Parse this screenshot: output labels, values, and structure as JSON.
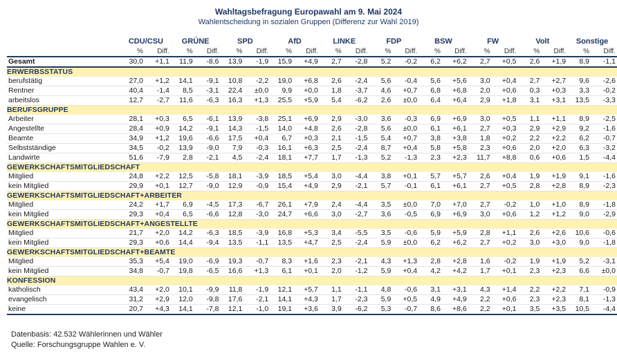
{
  "title": "Wahltagsbefragung Europawahl am 9. Mai 2024",
  "subtitle": "Wahlentscheidung in sozialen Gruppen (Differenz zur Wahl 2019)",
  "parties": [
    "CDU/CSU",
    "GRÜNE",
    "SPD",
    "AfD",
    "LINKE",
    "FDP",
    "BSW",
    "FW",
    "Volt",
    "Sonstige"
  ],
  "subheader": {
    "pct": "%",
    "diff": "Diff."
  },
  "gesamt": {
    "label": "Gesamt",
    "values": [
      "30,0",
      "+1,1",
      "11,9",
      "-8,6",
      "13,9",
      "-1,9",
      "15,9",
      "+4,9",
      "2,7",
      "-2,8",
      "5,2",
      "-0,2",
      "6,2",
      "+6,2",
      "2,7",
      "+0,5",
      "2,6",
      "+1,9",
      "8,9",
      "-1,1"
    ]
  },
  "sections": [
    {
      "title": "ERWERBSSTATUS",
      "rows": [
        {
          "label": "berufstätig",
          "values": [
            "27,0",
            "+1,2",
            "14,1",
            "-9,1",
            "10,8",
            "-2,2",
            "19,0",
            "+6,8",
            "2,6",
            "-2,4",
            "5,6",
            "-0,4",
            "5,6",
            "+5,6",
            "3,0",
            "+0,4",
            "2,7",
            "+2,7",
            "9,6",
            "-2,6"
          ]
        },
        {
          "label": "Rentner",
          "values": [
            "40,4",
            "-1,4",
            "8,5",
            "-3,1",
            "22,4",
            "±0,0",
            "9,9",
            "+0,0",
            "1,8",
            "-3,7",
            "4,6",
            "+0,7",
            "6,8",
            "+6,8",
            "2,0",
            "+0,6",
            "0,3",
            "+0,3",
            "3,3",
            "-0,2"
          ]
        },
        {
          "label": "arbeitslos",
          "values": [
            "12,7",
            "-2,7",
            "11,6",
            "-6,3",
            "16,3",
            "+1,3",
            "25,5",
            "+5,9",
            "5,4",
            "-6,2",
            "2,6",
            "±0,0",
            "6,4",
            "+6,4",
            "2,9",
            "+1,8",
            "3,1",
            "+3,1",
            "13,5",
            "-3,3"
          ]
        }
      ]
    },
    {
      "title": "BERUFSGRUPPE",
      "rows": [
        {
          "label": "Arbeiter",
          "values": [
            "28,1",
            "+0,3",
            "6,5",
            "-6,1",
            "13,9",
            "-3,8",
            "25,1",
            "+6,9",
            "2,9",
            "-3,0",
            "3,6",
            "-0,3",
            "6,9",
            "+6,9",
            "3,0",
            "+0,5",
            "1,1",
            "+1,1",
            "8,9",
            "-2,5"
          ]
        },
        {
          "label": "Angestellte",
          "values": [
            "28,4",
            "+0,9",
            "14,2",
            "-9,1",
            "14,3",
            "-1,5",
            "14,0",
            "+4,8",
            "2,6",
            "-2,8",
            "5,6",
            "±0,0",
            "6,1",
            "+6,1",
            "2,7",
            "+0,3",
            "2,9",
            "+2,9",
            "9,2",
            "-1,6"
          ]
        },
        {
          "label": "Beamte",
          "values": [
            "34,9",
            "+1,2",
            "19,6",
            "-6,6",
            "17,5",
            "+0,4",
            "6,7",
            "+0,3",
            "2,1",
            "-1,5",
            "5,4",
            "+0,7",
            "3,8",
            "+3,8",
            "1,8",
            "+0,2",
            "2,2",
            "+2,2",
            "6,2",
            "-0,7"
          ]
        },
        {
          "label": "Selbstständige",
          "values": [
            "34,5",
            "-0,2",
            "13,9",
            "-9,0",
            "7,9",
            "-0,3",
            "16,1",
            "+6,3",
            "2,5",
            "-2,4",
            "8,7",
            "+0,4",
            "5,8",
            "+5,8",
            "2,3",
            "+0,6",
            "2,0",
            "+2,0",
            "6,3",
            "-3,2"
          ]
        },
        {
          "label": "Landwirte",
          "values": [
            "51,6",
            "-7,9",
            "2,8",
            "-2,1",
            "4,5",
            "-2,4",
            "18,1",
            "+7,7",
            "1,7",
            "-1,3",
            "5,2",
            "-1,3",
            "2,3",
            "+2,3",
            "11,7",
            "+8,8",
            "0,6",
            "+0,6",
            "1,5",
            "-4,4"
          ]
        }
      ]
    },
    {
      "title": "GEWERKSCHAFTSMITGLIEDSCHAFT",
      "rows": [
        {
          "label": "Mitglied",
          "values": [
            "24,8",
            "+2,2",
            "12,5",
            "-5,8",
            "18,1",
            "-3,9",
            "18,5",
            "+5,4",
            "3,0",
            "-4,4",
            "3,8",
            "+0,1",
            "5,7",
            "+5,7",
            "2,6",
            "+0,4",
            "1,9",
            "+1,9",
            "9,1",
            "-1,6"
          ]
        },
        {
          "label": "kein Mitglied",
          "values": [
            "29,9",
            "+0,1",
            "12,7",
            "-9,0",
            "12,9",
            "-0,9",
            "15,4",
            "+4,9",
            "2,9",
            "-2,1",
            "5,7",
            "-0,1",
            "6,1",
            "+6,1",
            "2,7",
            "+0,5",
            "2,8",
            "+2,8",
            "8,9",
            "-2,3"
          ]
        }
      ]
    },
    {
      "title": "GEWERKSCHAFTSMITGLIEDSCHAFT+ARBEITER",
      "rows": [
        {
          "label": "Mitglied",
          "values": [
            "24,2",
            "+1,7",
            "6,9",
            "-4,5",
            "17,3",
            "-6,7",
            "26,1",
            "+7,9",
            "2,4",
            "-4,4",
            "3,5",
            "±0,0",
            "7,0",
            "+7,0",
            "2,7",
            "-0,2",
            "1,0",
            "+1,0",
            "8,9",
            "-1,8"
          ]
        },
        {
          "label": "kein Mitglied",
          "values": [
            "29,3",
            "+0,4",
            "6,5",
            "-6,6",
            "12,8",
            "-3,0",
            "24,7",
            "+6,6",
            "3,0",
            "-2,7",
            "3,6",
            "-0,5",
            "6,9",
            "+6,9",
            "3,0",
            "+0,6",
            "1,2",
            "+1,2",
            "9,0",
            "-2,9"
          ]
        }
      ]
    },
    {
      "title": "GEWERKSCHAFTSMITGLIEDSCHAFT+ANGESTELLTE",
      "rows": [
        {
          "label": "Mitglied",
          "values": [
            "21,7",
            "+2,0",
            "14,2",
            "-6,3",
            "18,5",
            "-3,9",
            "16,8",
            "+5,3",
            "3,4",
            "-5,5",
            "3,5",
            "-0,6",
            "5,9",
            "+5,9",
            "2,8",
            "+1,1",
            "2,6",
            "+2,6",
            "10,6",
            "-0,6"
          ]
        },
        {
          "label": "kein Mitglied",
          "values": [
            "29,3",
            "+0,6",
            "14,4",
            "-9,4",
            "13,5",
            "-1,1",
            "13,5",
            "+4,7",
            "2,5",
            "-2,4",
            "5,9",
            "±0,0",
            "6,2",
            "+6,2",
            "2,7",
            "+0,2",
            "3,0",
            "+3,0",
            "9,0",
            "-1,8"
          ]
        }
      ]
    },
    {
      "title": "GEWERKSCHAFTSMITGLIEDSCHAFT+BEAMTE",
      "rows": [
        {
          "label": "Mitglied",
          "values": [
            "35,3",
            "+5,4",
            "19,0",
            "-6,9",
            "19,3",
            "-0,7",
            "8,3",
            "+1,6",
            "2,3",
            "-2,1",
            "4,3",
            "+1,3",
            "2,8",
            "+2,8",
            "1,6",
            "-0,2",
            "1,9",
            "+1,9",
            "5,2",
            "-3,1"
          ]
        },
        {
          "label": "kein Mitglied",
          "values": [
            "34,8",
            "-0,7",
            "19,8",
            "-6,5",
            "16,6",
            "+1,3",
            "6,1",
            "+0,1",
            "2,0",
            "-1,2",
            "5,9",
            "+0,4",
            "4,2",
            "+4,2",
            "1,7",
            "+0,1",
            "2,3",
            "+2,3",
            "6,6",
            "±0,0"
          ]
        }
      ]
    },
    {
      "title": "KONFESSION",
      "rows": [
        {
          "label": "katholisch",
          "values": [
            "43,4",
            "+2,0",
            "10,1",
            "-9,9",
            "11,8",
            "-1,9",
            "12,1",
            "+5,7",
            "1,1",
            "-1,1",
            "4,8",
            "-0,6",
            "3,1",
            "+3,1",
            "4,3",
            "+1,4",
            "2,2",
            "+2,2",
            "7,1",
            "-0,9"
          ]
        },
        {
          "label": "evangelisch",
          "values": [
            "31,2",
            "+2,9",
            "12,0",
            "-9,8",
            "17,6",
            "-2,1",
            "14,1",
            "+4,3",
            "1,7",
            "-2,3",
            "5,9",
            "+0,5",
            "4,9",
            "+4,9",
            "2,2",
            "+0,6",
            "2,3",
            "+2,3",
            "8,1",
            "-1,3"
          ]
        },
        {
          "label": "keine",
          "values": [
            "20,7",
            "+4,3",
            "14,1",
            "-7,8",
            "12,1",
            "-1,0",
            "19,1",
            "+3,6",
            "3,9",
            "-6,2",
            "5,3",
            "-0,7",
            "8,6",
            "+8,6",
            "2,2",
            "+0,1",
            "3,5",
            "+3,5",
            "10,5",
            "-4,4"
          ]
        }
      ]
    }
  ],
  "footer": {
    "basis": "Datenbasis: 42.532 Wählerinnen und Wähler",
    "quelle": "Quelle: Forschungsgruppe Wahlen e. V."
  }
}
